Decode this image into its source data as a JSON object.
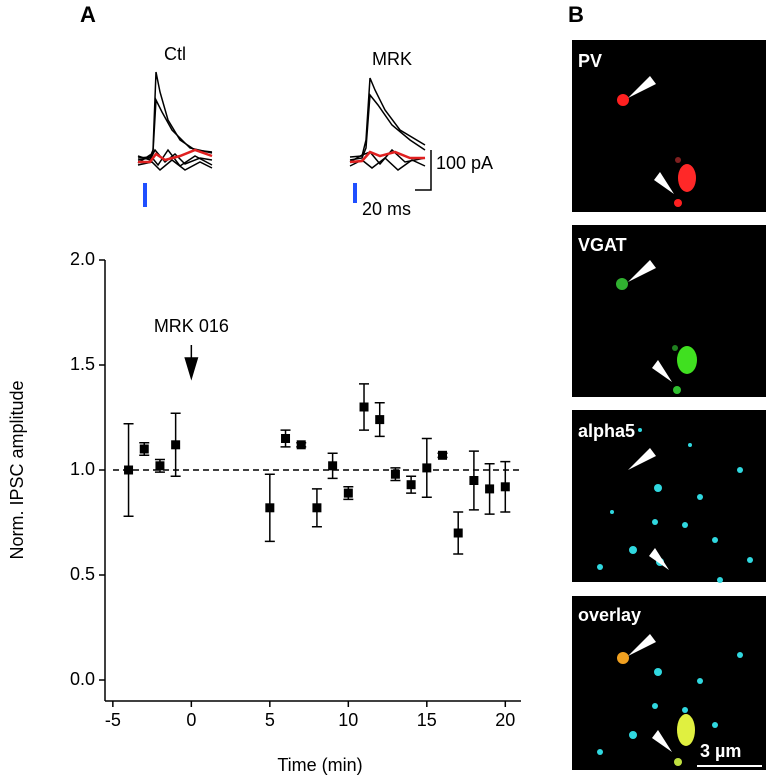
{
  "figure": {
    "panel_a": "A",
    "panel_b": "B",
    "trace_ctl": "Ctl",
    "trace_mrk": "MRK",
    "scale_current": "100 pA",
    "scale_time": "20 ms",
    "images": [
      "PV",
      "VGAT",
      "alpha5",
      "overlay"
    ],
    "image_scale": "3 µm"
  },
  "chart_data": {
    "type": "scatter",
    "xlabel": "Time (min)",
    "ylabel": "Norm. IPSC amplitude",
    "x": [
      -4,
      -3,
      -2,
      -1,
      5,
      6,
      7,
      8,
      9,
      10,
      11,
      12,
      13,
      14,
      15,
      16,
      17,
      18,
      19,
      20
    ],
    "values": [
      1.0,
      1.1,
      1.02,
      1.12,
      0.82,
      1.15,
      1.12,
      0.82,
      1.02,
      0.89,
      1.3,
      1.24,
      0.98,
      0.93,
      1.01,
      1.07,
      0.7,
      0.95,
      0.91,
      0.92
    ],
    "errors": [
      0.22,
      0.03,
      0.03,
      0.15,
      0.16,
      0.04,
      0.01,
      0.09,
      0.06,
      0.03,
      0.11,
      0.08,
      0.03,
      0.04,
      0.14,
      0.01,
      0.1,
      0.14,
      0.12,
      0.12
    ],
    "color": "#000000",
    "xlim": [
      -5.5,
      21
    ],
    "ylim": [
      -0.1,
      2.0
    ],
    "xticks": [
      -5,
      0,
      5,
      10,
      15,
      20
    ],
    "yticks": [
      {
        "value": 0,
        "label": "0.0"
      },
      {
        "value": 0.5,
        "label": "0.5"
      },
      {
        "value": 1,
        "label": "1.0"
      },
      {
        "value": 1.5,
        "label": "1.5"
      },
      {
        "value": 2,
        "label": "2.0"
      }
    ],
    "reference_line": 1,
    "annotation": {
      "text": "MRK 016",
      "x": 0
    }
  }
}
